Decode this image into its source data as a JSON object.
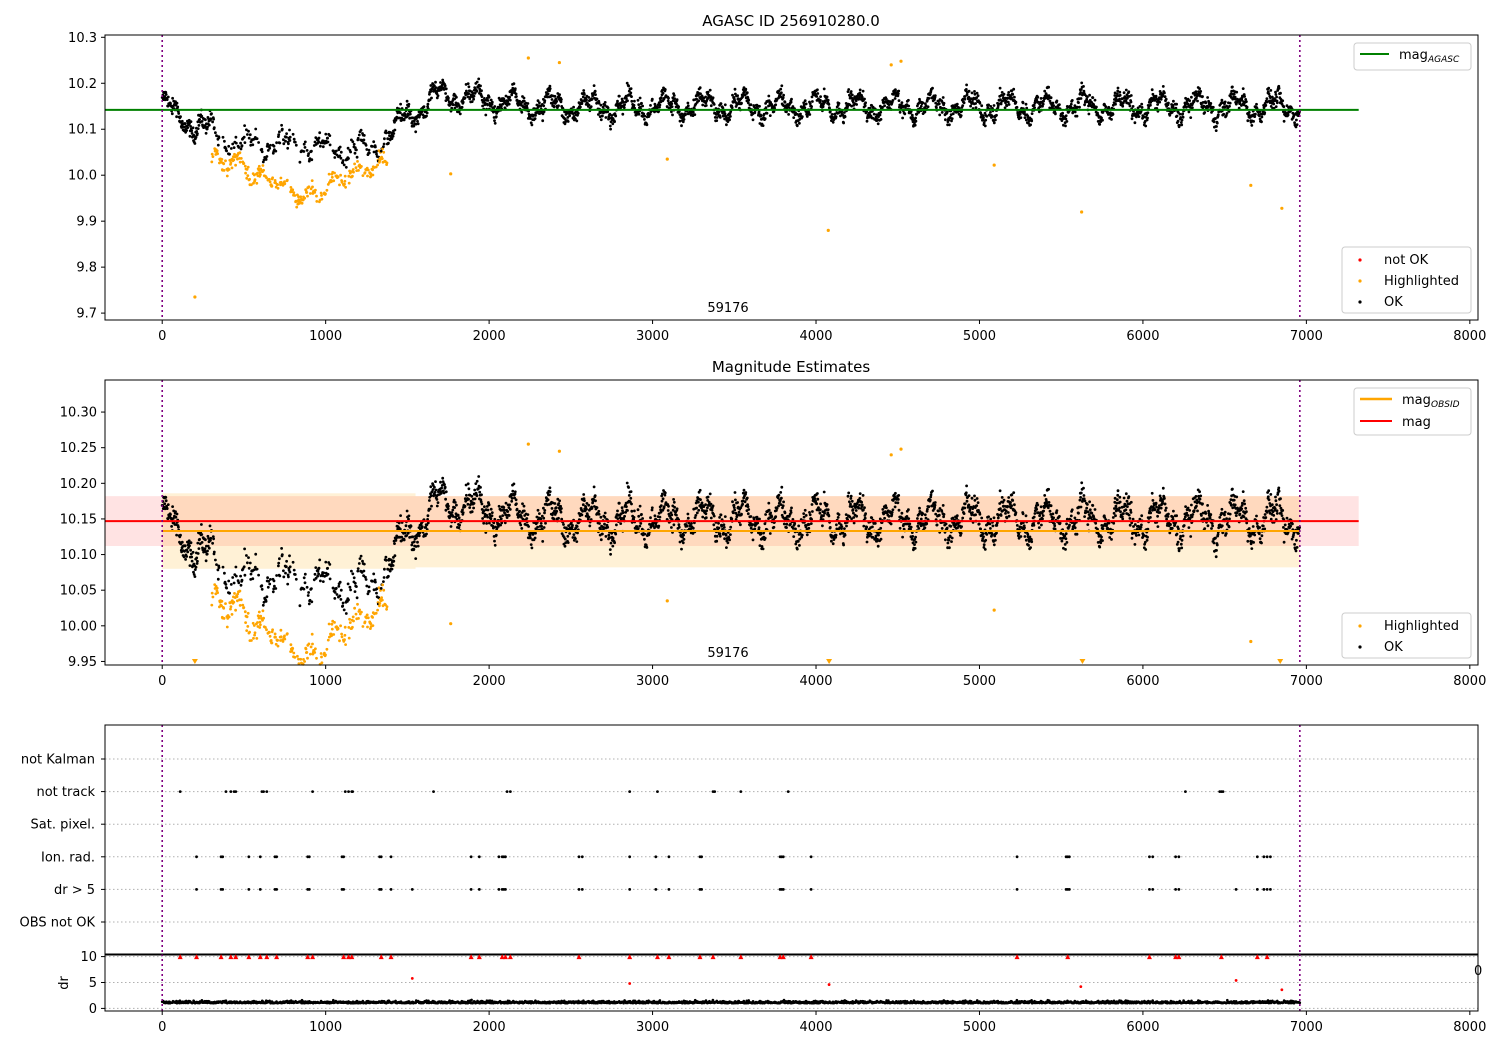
{
  "chart_data": [
    {
      "type": "scatter",
      "title": "AGASC ID 256910280.0",
      "annotation": "59176",
      "ylim": [
        9.685,
        10.305
      ],
      "xlim": [
        -350,
        8050
      ],
      "xticks": [
        0,
        1000,
        2000,
        3000,
        4000,
        5000,
        6000,
        7000,
        8000
      ],
      "yticks": [
        9.7,
        9.8,
        9.9,
        10.0,
        10.1,
        10.2,
        10.3
      ],
      "vlines": [
        0,
        6960
      ],
      "hline": {
        "name": "mag",
        "sub": "AGASC",
        "y": 10.142,
        "x": [
          -350,
          7320
        ],
        "color": "#008000"
      },
      "legend_lines": [
        {
          "name": "mag",
          "sub": "AGASC",
          "color": "#008000"
        }
      ],
      "legend_points": [
        {
          "name": "not OK",
          "color": "#ff0000"
        },
        {
          "name": "Highlighted",
          "color": "#ffa500"
        },
        {
          "name": "OK",
          "color": "#000000"
        }
      ],
      "series": [
        {
          "name": "OK",
          "color": "#000000",
          "trend": [
            [
              0,
              10.16
            ],
            [
              100,
              10.12
            ],
            [
              250,
              10.11
            ],
            [
              350,
              10.075
            ],
            [
              500,
              10.07
            ],
            [
              700,
              10.07
            ],
            [
              900,
              10.06
            ],
            [
              1100,
              10.06
            ],
            [
              1250,
              10.05
            ],
            [
              1400,
              10.09
            ],
            [
              1500,
              10.13
            ],
            [
              1700,
              10.175
            ],
            [
              2300,
              10.15
            ],
            [
              7000,
              10.15
            ]
          ],
          "noise": 0.035,
          "x": [
            0,
            6960
          ]
        },
        {
          "name": "Highlighted",
          "color": "#ffa500",
          "trend": [
            [
              300,
              10.035
            ],
            [
              450,
              10.03
            ],
            [
              550,
              10.0
            ],
            [
              700,
              9.99
            ],
            [
              850,
              9.95
            ],
            [
              950,
              9.96
            ],
            [
              1050,
              9.985
            ],
            [
              1200,
              10.01
            ],
            [
              1350,
              10.03
            ]
          ],
          "noise": 0.03,
          "x": [
            300,
            1380
          ],
          "outliers": [
            [
              200,
              9.735
            ],
            [
              1765,
              10.003
            ],
            [
              2240,
              10.255
            ],
            [
              2430,
              10.245
            ],
            [
              3090,
              10.035
            ],
            [
              4075,
              9.88
            ],
            [
              4460,
              10.24
            ],
            [
              4520,
              10.248
            ],
            [
              5090,
              10.022
            ],
            [
              5625,
              9.92
            ],
            [
              6660,
              9.978
            ],
            [
              6850,
              9.928
            ]
          ]
        }
      ]
    },
    {
      "type": "scatter",
      "title": "Magnitude Estimates",
      "annotation": "59176",
      "ylim": [
        9.945,
        10.345
      ],
      "xlim": [
        -350,
        8050
      ],
      "xticks": [
        0,
        1000,
        2000,
        3000,
        4000,
        5000,
        6000,
        7000,
        8000
      ],
      "yticks": [
        9.95,
        10.0,
        10.05,
        10.1,
        10.15,
        10.2,
        10.25,
        10.3
      ],
      "vlines": [
        0,
        6960
      ],
      "bands": [
        {
          "name": "mag band",
          "y": [
            10.112,
            10.182
          ],
          "x": [
            -350,
            7320
          ],
          "color": "rgba(255,0,0,0.11)"
        },
        {
          "name": "mag_OBSID band 1",
          "y": [
            10.08,
            10.186
          ],
          "x": [
            0,
            1550
          ],
          "color": "rgba(255,165,0,0.16)"
        },
        {
          "name": "mag_OBSID band 2",
          "y": [
            10.082,
            10.182
          ],
          "x": [
            1550,
            6960
          ],
          "color": "rgba(255,165,0,0.16)"
        }
      ],
      "hlines": [
        {
          "name": "mag",
          "sub": "OBSID",
          "y": 10.133,
          "x": [
            0,
            6960
          ],
          "color": "#ffa500"
        },
        {
          "name": "mag",
          "sub": "",
          "y": 10.147,
          "x": [
            -350,
            7320
          ],
          "color": "#ff0000"
        }
      ],
      "legend_lines": [
        {
          "name": "mag",
          "sub": "OBSID",
          "color": "#ffa500"
        },
        {
          "name": "mag",
          "sub": "",
          "color": "#ff0000"
        }
      ],
      "legend_points": [
        {
          "name": "Highlighted",
          "color": "#ffa500"
        },
        {
          "name": "OK",
          "color": "#000000"
        }
      ],
      "offscale_markers": [
        200,
        4080,
        5630,
        6840
      ]
    },
    {
      "type": "scatter",
      "title": "",
      "categories": [
        "not Kalman",
        "not track",
        "Sat. pixel.",
        "Ion. rad.",
        "dr > 5",
        "OBS not OK"
      ],
      "xlim": [
        -350,
        8050
      ],
      "vlines": [
        0,
        6960
      ],
      "flags": {
        "not track": [
          110,
          390,
          420,
          440,
          450,
          610,
          620,
          640,
          920,
          1120,
          1140,
          1160,
          1165,
          1660,
          2110,
          2130,
          2860,
          3030,
          3370,
          3380,
          3540,
          3830,
          6260,
          6470,
          6480,
          6490
        ],
        "Ion. rad.": [
          210,
          360,
          370,
          530,
          600,
          690,
          700,
          890,
          900,
          1100,
          1110,
          1330,
          1340,
          1400,
          1890,
          1940,
          2060,
          2080,
          2090,
          2100,
          2550,
          2570,
          2860,
          3020,
          3100,
          3290,
          3300,
          3780,
          3790,
          3800,
          3970,
          5230,
          5530,
          5540,
          5550,
          6040,
          6060,
          6200,
          6220,
          6700,
          6740,
          6760,
          6780
        ],
        "dr > 5": [
          210,
          360,
          370,
          530,
          600,
          690,
          700,
          890,
          900,
          1100,
          1110,
          1330,
          1340,
          1400,
          1530,
          1890,
          1940,
          2060,
          2080,
          2090,
          2100,
          2550,
          2570,
          2860,
          3020,
          3100,
          3290,
          3300,
          3780,
          3790,
          3800,
          3970,
          5230,
          5530,
          5540,
          5550,
          6040,
          6060,
          6200,
          6220,
          6570,
          6700,
          6740,
          6760,
          6780
        ]
      }
    },
    {
      "type": "scatter",
      "ylabel": "dr",
      "ylim": [
        -0.5,
        10.5
      ],
      "yticks": [
        0,
        5,
        10
      ],
      "xlim": [
        -350,
        8050
      ],
      "xticks": [
        0,
        1000,
        2000,
        3000,
        4000,
        5000,
        6000,
        7000,
        8000
      ],
      "xtick_labels": [
        "0",
        "1000",
        "2000",
        "3000",
        "4000",
        "5000",
        "6000",
        "7000",
        "8000"
      ],
      "vlines": [
        0,
        6960
      ],
      "clipped_markers": [
        110,
        210,
        360,
        420,
        450,
        530,
        600,
        640,
        700,
        890,
        920,
        1110,
        1140,
        1160,
        1340,
        1400,
        1890,
        1940,
        2080,
        2100,
        2130,
        2550,
        2860,
        3030,
        3100,
        3290,
        3370,
        3540,
        3780,
        3800,
        3970,
        5230,
        5540,
        6040,
        6200,
        6220,
        6480,
        6700,
        6760
      ],
      "red_points": [
        [
          1530,
          5.8
        ],
        [
          2860,
          4.8
        ],
        [
          4080,
          4.6
        ],
        [
          5620,
          4.2
        ],
        [
          6570,
          5.4
        ],
        [
          6850,
          3.6
        ]
      ],
      "series": [
        {
          "name": "dr",
          "color": "#000000",
          "base": 1.2,
          "noise": 0.6,
          "x": [
            0,
            6960
          ]
        }
      ]
    }
  ],
  "stray_tick_label": "0"
}
